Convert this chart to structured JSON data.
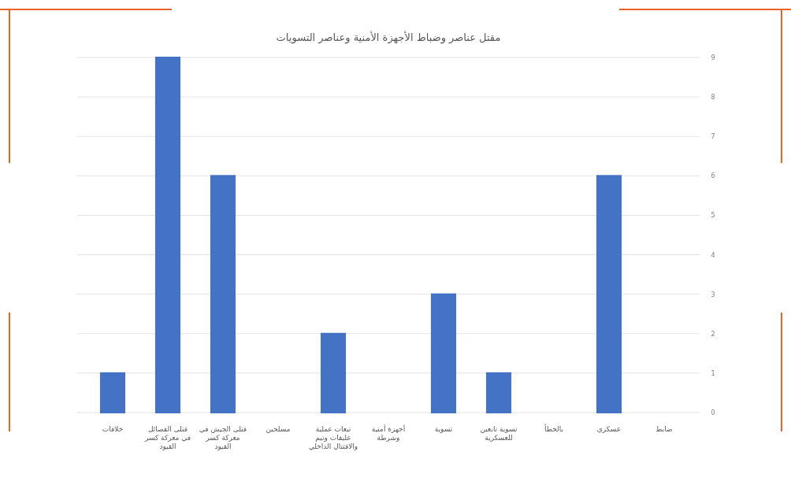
{
  "chart_data": {
    "type": "bar",
    "title": "مقتل عناصر وضباط الأجهزة الأمنية وعناصر التسويات",
    "categories": [
      "خلافات",
      "قتلى الفصائل في معركة كسر القيود",
      "قتلى الجيش في معركة كسر القيود",
      "مسلحين",
      "تبعات عملية عليقات وتيم والاقتتال الداخلي",
      "أجهزة أمنية وشرطة",
      "تسوية",
      "تسوية تابعين للعسكرية",
      "بالخطأ",
      "عسكري",
      "ضابط"
    ],
    "values": [
      1,
      9,
      6,
      0,
      2,
      0,
      3,
      1,
      0,
      6,
      0
    ],
    "color": "#4472c4",
    "ylim": [
      0,
      9
    ],
    "yticks": [
      0,
      1,
      2,
      3,
      4,
      5,
      6,
      7,
      8,
      9
    ],
    "grid": "y"
  }
}
